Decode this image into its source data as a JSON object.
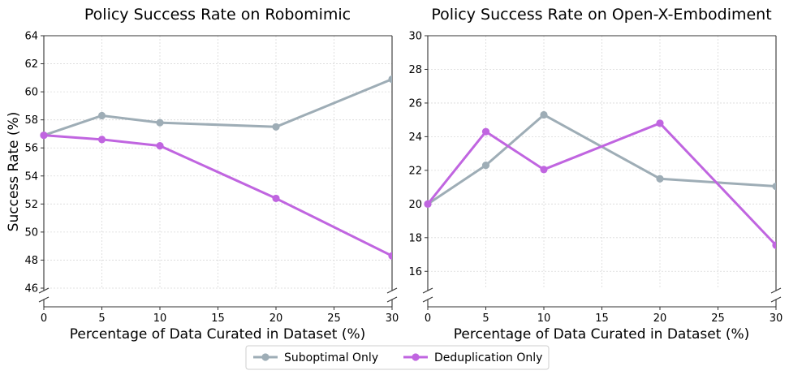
{
  "chart_data": [
    {
      "type": "line",
      "title": "Policy Success Rate on Robomimic",
      "xlabel": "Percentage of Data Curated in Dataset (%)",
      "ylabel": "Success Rate (%)",
      "x": [
        0,
        5,
        10,
        20,
        30
      ],
      "xticks": [
        0,
        5,
        10,
        15,
        20,
        25,
        30
      ],
      "xlim": [
        0,
        30
      ],
      "yticks": [
        46,
        48,
        50,
        52,
        54,
        56,
        58,
        60,
        62,
        64
      ],
      "ylim": [
        46,
        64
      ],
      "grid": true,
      "series": [
        {
          "name": "Suboptimal Only",
          "color": "#9eadb6",
          "values": [
            56.9,
            58.3,
            57.8,
            57.5,
            60.9
          ]
        },
        {
          "name": "Deduplication Only",
          "color": "#c065e0",
          "values": [
            56.9,
            56.6,
            56.15,
            52.4,
            48.3
          ]
        }
      ]
    },
    {
      "type": "line",
      "title": "Policy Success Rate on Open-X-Embodiment",
      "xlabel": "Percentage of Data Curated in Dataset (%)",
      "ylabel": "",
      "x": [
        0,
        5,
        10,
        20,
        30
      ],
      "xticks": [
        0,
        5,
        10,
        15,
        20,
        25,
        30
      ],
      "xlim": [
        0,
        30
      ],
      "yticks": [
        16,
        18,
        20,
        22,
        24,
        26,
        28,
        30
      ],
      "ylim": [
        15,
        30
      ],
      "grid": true,
      "series": [
        {
          "name": "Suboptimal Only",
          "color": "#9eadb6",
          "values": [
            20.0,
            22.3,
            25.3,
            21.5,
            21.05
          ]
        },
        {
          "name": "Deduplication Only",
          "color": "#c065e0",
          "values": [
            20.0,
            24.3,
            22.05,
            24.8,
            17.55
          ]
        }
      ]
    }
  ],
  "legend": [
    {
      "label": "Suboptimal Only",
      "color": "#9eadb6"
    },
    {
      "label": "Deduplication Only",
      "color": "#c065e0"
    }
  ]
}
